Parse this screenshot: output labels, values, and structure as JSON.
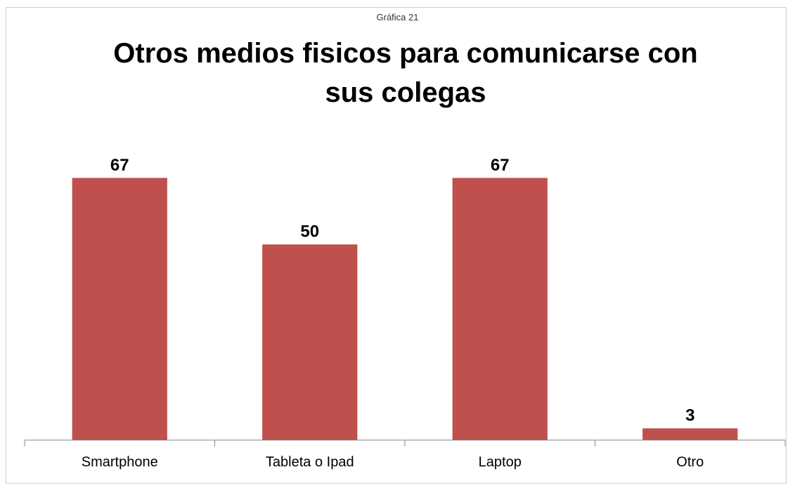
{
  "chart_data": {
    "type": "bar",
    "subtitle": "Gráfica 21",
    "title": "Otros medios fisicos para comunicarse con sus colegas",
    "categories": [
      "Smartphone",
      "Tableta o Ipad",
      "Laptop",
      "Otro"
    ],
    "values": [
      67,
      50,
      67,
      3
    ],
    "color": "#c0504d",
    "ylim": [
      0,
      80
    ]
  }
}
